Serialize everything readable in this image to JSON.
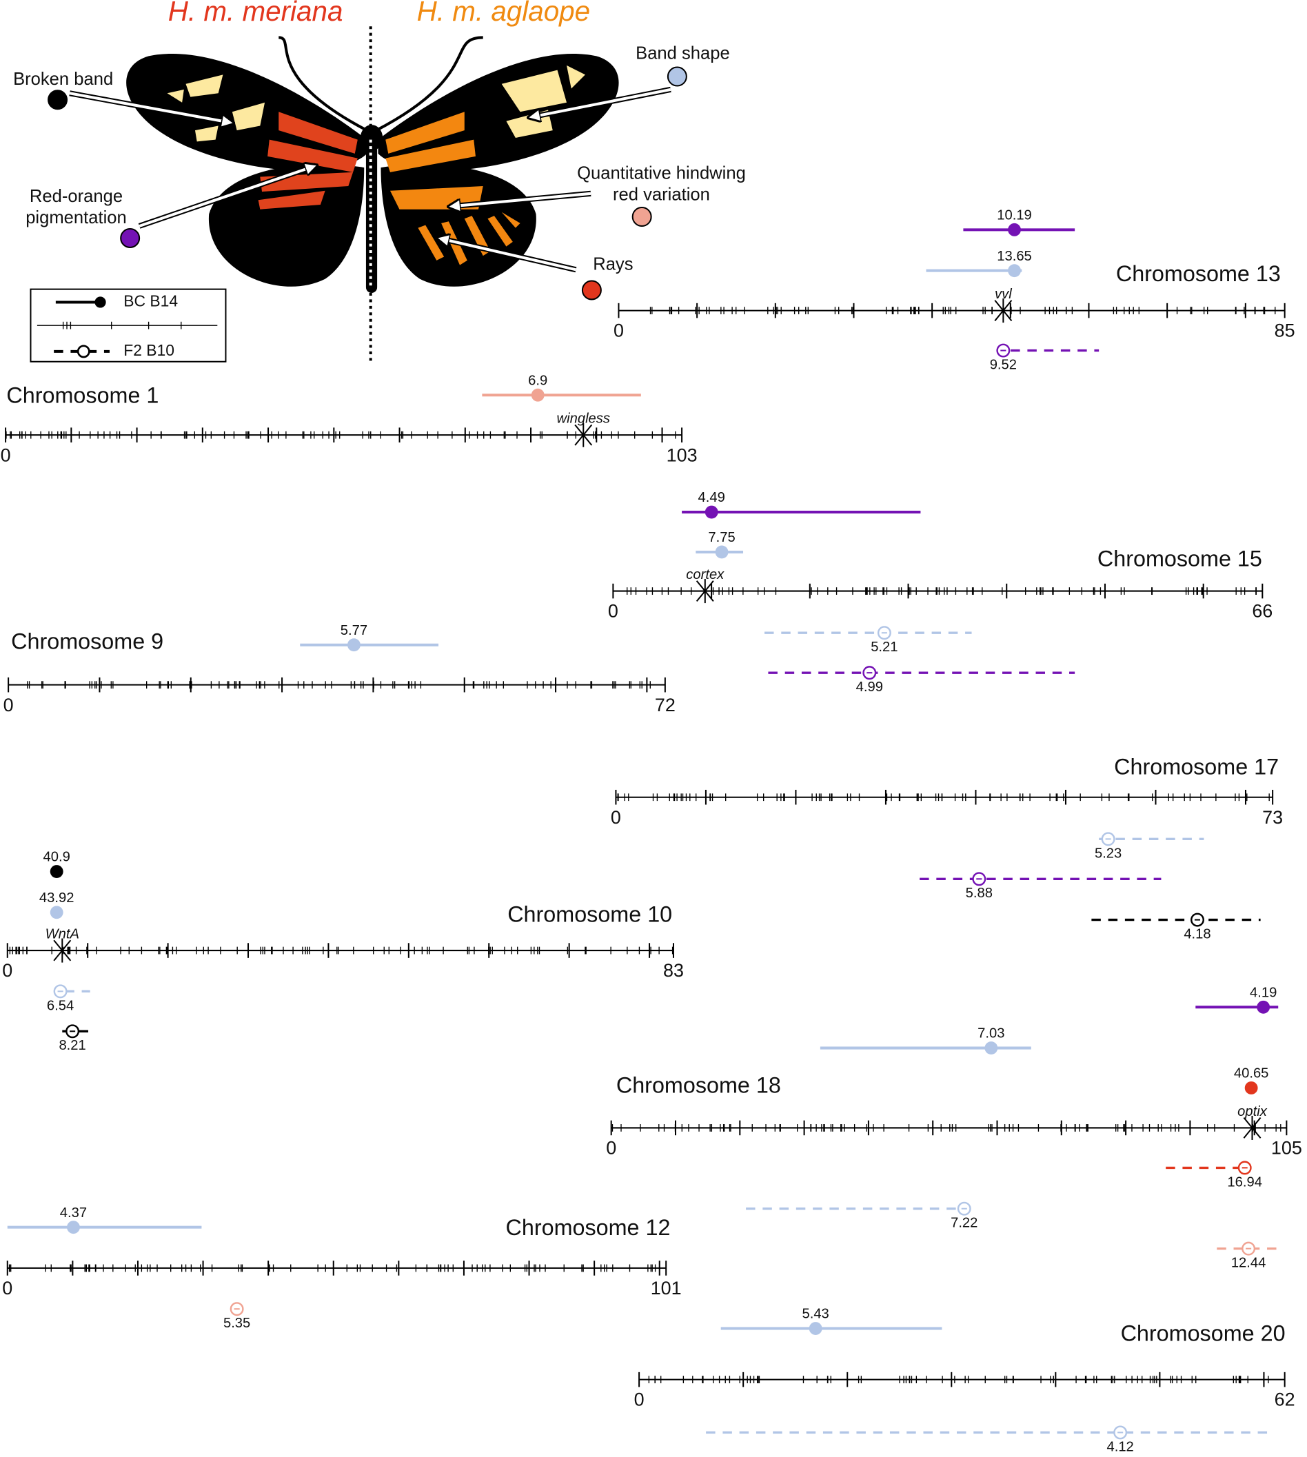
{
  "titles": {
    "left": "H. m. meriana",
    "right": "H. m. aglaope"
  },
  "traits": [
    {
      "label": [
        "Broken band"
      ],
      "color": "#000000"
    },
    {
      "label": [
        "Band shape"
      ],
      "color": "#b1c5e6"
    },
    {
      "label": [
        "Red-orange",
        "pigmentation"
      ],
      "color": "#7412b4"
    },
    {
      "label": [
        "Quantitative hindwing",
        "red variation"
      ],
      "color": "#f0a392"
    },
    {
      "label": [
        "Rays"
      ],
      "color": "#e2361d"
    }
  ],
  "legend": {
    "bc": "BC B14",
    "f2": "F2 B10"
  },
  "chromosomes": [
    {
      "name": "Chromosome 13",
      "start": 0,
      "end": 85,
      "gene": "vvl",
      "qtls": [
        {
          "trait": 2,
          "cross": "BC",
          "label": 10.19
        },
        {
          "trait": 1,
          "cross": "BC",
          "label": 13.65
        },
        {
          "trait": 2,
          "cross": "F2",
          "label": 9.52
        }
      ]
    },
    {
      "name": "Chromosome 1",
      "start": 0,
      "end": 103,
      "gene": "wingless",
      "qtls": [
        {
          "trait": 3,
          "cross": "BC",
          "label": 6.9
        }
      ]
    },
    {
      "name": "Chromosome 15",
      "start": 0,
      "end": 66,
      "gene": "cortex",
      "qtls": [
        {
          "trait": 2,
          "cross": "BC",
          "label": 4.49
        },
        {
          "trait": 1,
          "cross": "BC",
          "label": 7.75
        },
        {
          "trait": 1,
          "cross": "F2",
          "label": 5.21
        },
        {
          "trait": 2,
          "cross": "F2",
          "label": 4.99
        }
      ]
    },
    {
      "name": "Chromosome 9",
      "start": 0,
      "end": 72,
      "qtls": [
        {
          "trait": 1,
          "cross": "BC",
          "label": 5.77
        }
      ]
    },
    {
      "name": "Chromosome 17",
      "start": 0,
      "end": 73,
      "qtls": [
        {
          "trait": 1,
          "cross": "F2",
          "label": 5.23
        },
        {
          "trait": 2,
          "cross": "F2",
          "label": 5.88
        },
        {
          "trait": 0,
          "cross": "F2",
          "label": 4.18
        }
      ]
    },
    {
      "name": "Chromosome 10",
      "start": 0,
      "end": 83,
      "gene": "WntA",
      "qtls": [
        {
          "trait": 0,
          "cross": "BC",
          "label": 40.9
        },
        {
          "trait": 1,
          "cross": "BC",
          "label": 43.92
        },
        {
          "trait": 1,
          "cross": "F2",
          "label": 6.54
        },
        {
          "trait": 0,
          "cross": "F2",
          "label": 8.21
        }
      ]
    },
    {
      "name": "Chromosome 18",
      "start": 0,
      "end": 105,
      "gene": "optix",
      "qtls": [
        {
          "trait": 2,
          "cross": "BC",
          "label": 4.19
        },
        {
          "trait": 1,
          "cross": "BC",
          "label": 7.03
        },
        {
          "trait": 4,
          "cross": "BC",
          "label": 40.65
        },
        {
          "trait": 4,
          "cross": "F2",
          "label": 16.94
        },
        {
          "trait": 1,
          "cross": "F2",
          "label": 7.22
        },
        {
          "trait": 3,
          "cross": "F2",
          "label": 12.44
        }
      ]
    },
    {
      "name": "Chromosome 12",
      "start": 0,
      "end": 101,
      "qtls": [
        {
          "trait": 1,
          "cross": "BC",
          "label": 4.37
        },
        {
          "trait": 3,
          "cross": "F2",
          "label": 5.35
        }
      ]
    },
    {
      "name": "Chromosome 20",
      "start": 0,
      "end": 62,
      "qtls": [
        {
          "trait": 1,
          "cross": "BC",
          "label": 5.43
        },
        {
          "trait": 1,
          "cross": "F2",
          "label": 4.12
        }
      ]
    }
  ]
}
